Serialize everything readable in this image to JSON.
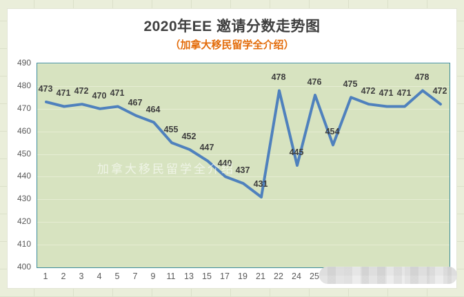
{
  "page": {
    "title": "2020年EE 邀请分数走势图",
    "subtitle": "（加拿大移民留学全介绍）"
  },
  "watermark": {
    "text": "加拿大移民留学全介绍"
  },
  "colors": {
    "line": "#4f81bd",
    "plot_background": "#d7e3c0",
    "plot_border": "#3a8a98",
    "gridline": "#e6edd3",
    "title_text": "#3f3f3f",
    "subtitle_text": "#e36c0a",
    "axis_text": "#595959",
    "data_label_text": "#3d3d3d",
    "page_background": "#eaeeda",
    "card_background": "#ffffff"
  },
  "chart_data": {
    "type": "line",
    "title": "2020年EE 邀请分数走势图",
    "subtitle": "（加拿大移民留学全介绍）",
    "values": [
      473,
      471,
      472,
      470,
      471,
      467,
      464,
      455,
      452,
      447,
      440,
      437,
      431,
      478,
      445,
      476,
      454,
      475,
      472,
      471,
      471,
      478,
      472
    ],
    "x_tick_labels_visible": [
      "1",
      "2",
      "3",
      "4",
      "5",
      "7",
      "9",
      "11",
      "13",
      "15",
      "17",
      "19",
      "21",
      "22",
      "24",
      "25"
    ],
    "x_tick_labels_redacted_count": 7,
    "y_ticks": [
      400,
      410,
      420,
      430,
      440,
      450,
      460,
      470,
      480,
      490
    ],
    "ylim": [
      400,
      490
    ],
    "grid": true,
    "legend": "none",
    "data_labels_shown": true
  }
}
